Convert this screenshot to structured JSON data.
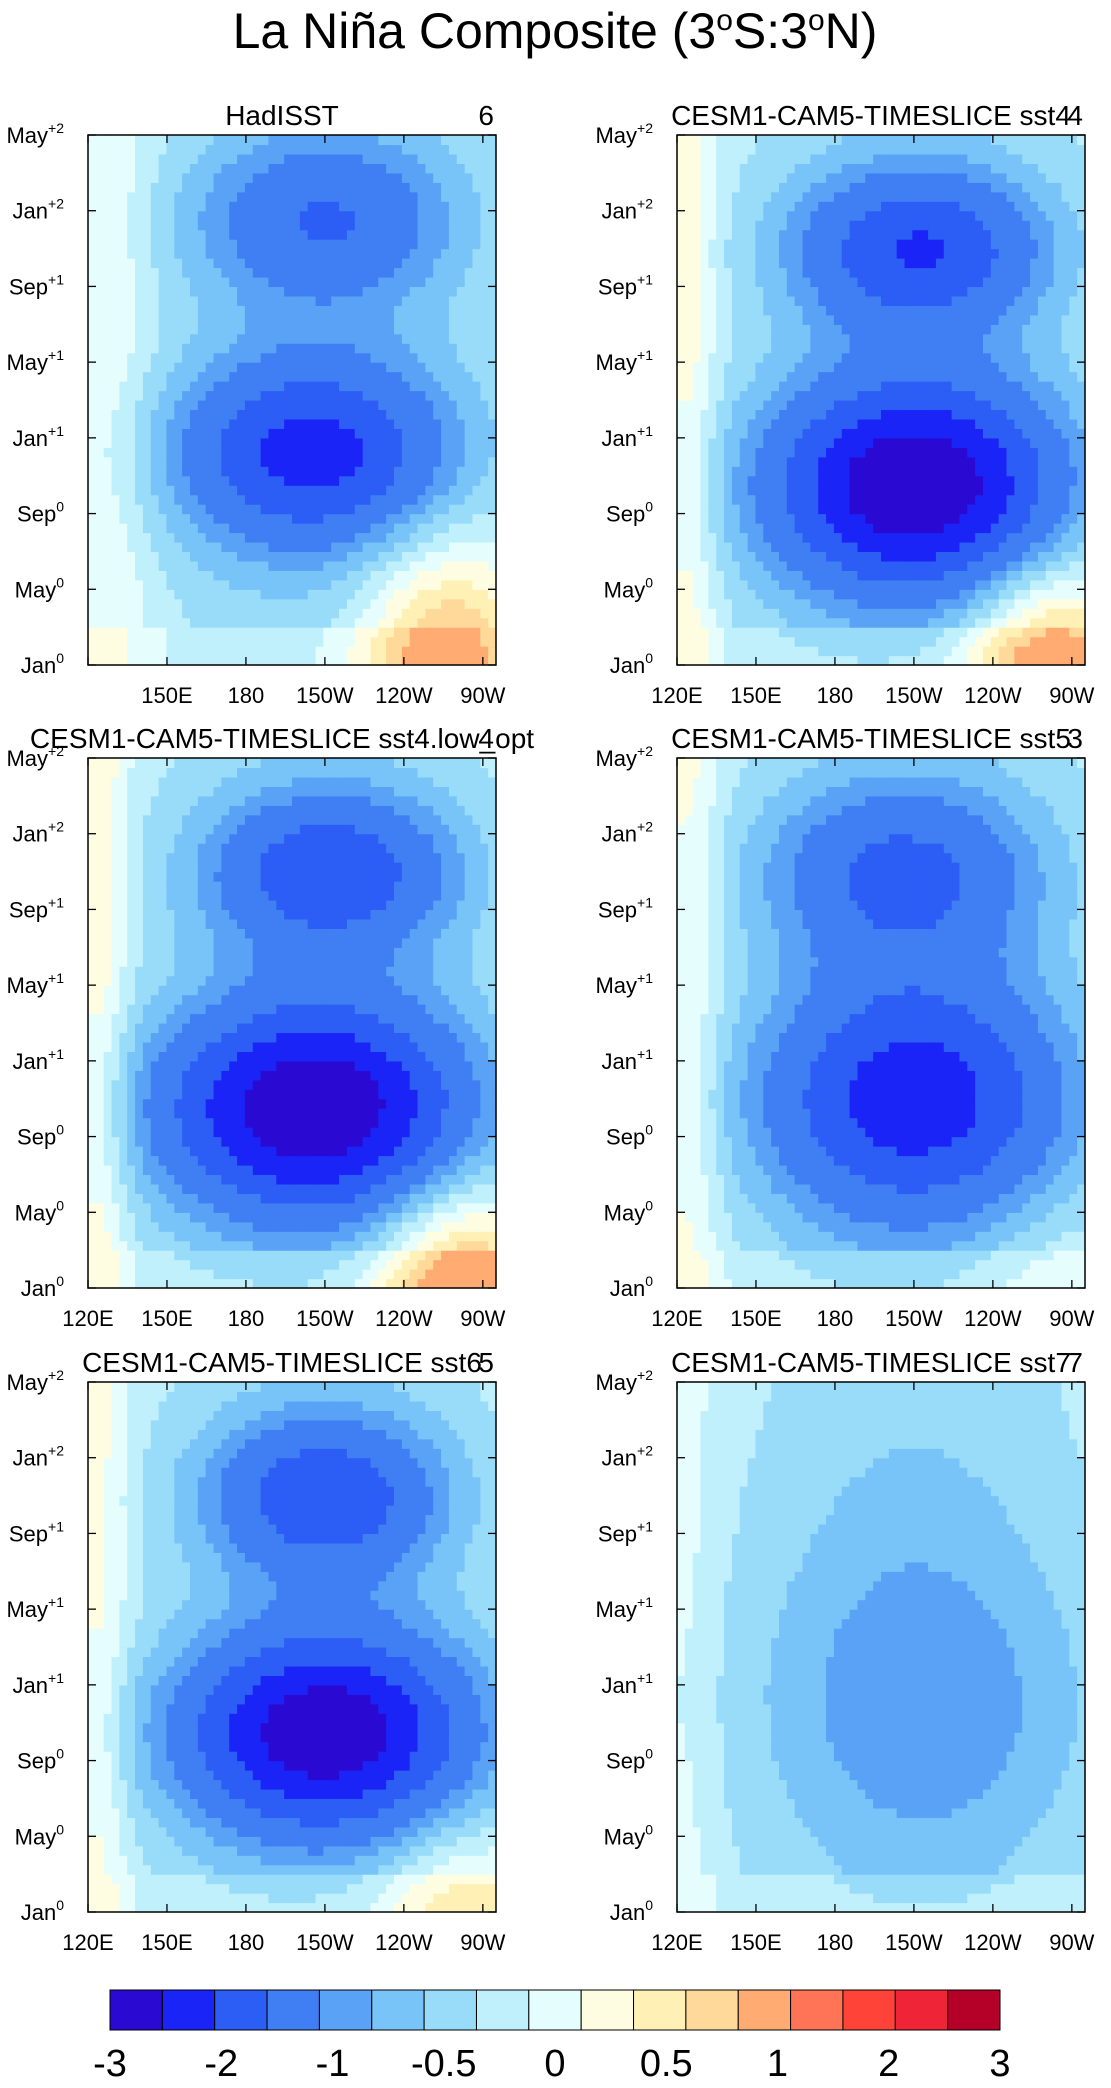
{
  "title": "La Niña Composite (3°S:3°N)",
  "title_parts": {
    "pre": "La Niña Composite (3",
    "deg1": "o",
    "mid": "S:3",
    "deg2": "o",
    "post": "N)"
  },
  "chart_data": {
    "type": "heatmap",
    "description_units": "SST anomaly",
    "x_ticks": [
      "120E",
      "150E",
      "180",
      "150W",
      "120W",
      "90W"
    ],
    "y_ticks": [
      {
        "base": "Jan",
        "sup": "0"
      },
      {
        "base": "May",
        "sup": "0"
      },
      {
        "base": "Sep",
        "sup": "0"
      },
      {
        "base": "Jan",
        "sup": "+1"
      },
      {
        "base": "May",
        "sup": "+1"
      },
      {
        "base": "Sep",
        "sup": "+1"
      },
      {
        "base": "Jan",
        "sup": "+2"
      },
      {
        "base": "May",
        "sup": "+2"
      }
    ],
    "colorbar": {
      "levels": [
        -3,
        -2.5,
        -2,
        -1.5,
        -1,
        -0.75,
        -0.5,
        -0.25,
        0,
        0.25,
        0.5,
        0.75,
        1,
        1.5,
        2,
        2.5,
        3
      ],
      "labels": [
        "-3",
        "-2",
        "-1",
        "-0.5",
        "0",
        "0.5",
        "1",
        "2",
        "3"
      ],
      "label_levels": [
        -3,
        -2,
        -1,
        -0.5,
        0,
        0.5,
        1,
        2,
        3
      ],
      "colors": [
        "#2a0ad2",
        "#1b24f7",
        "#2c5df5",
        "#3f7ef3",
        "#5aa2f6",
        "#78c3f8",
        "#98dcf9",
        "#bff0fc",
        "#e6fdfe",
        "#fffde1",
        "#fff0b6",
        "#ffd99a",
        "#ffab72",
        "#ff7356",
        "#ff4338",
        "#ef2437",
        "#b50027"
      ]
    },
    "panels": [
      {
        "title": "HadISST",
        "number": "6",
        "show_x_ticks": true,
        "first_x_tick": false,
        "field": {
          "A": 1.9,
          "center_lon": 205,
          "center_t": 11.2,
          "lon_w": 38,
          "t_w": 3.6,
          "B": 1.2,
          "center2_lon": 210,
          "center2_t": 23.5,
          "lon2_w": 36,
          "t2_w": 3.2,
          "warm_amp": 1.4,
          "warm_lon": 255,
          "warm_t": 0,
          "warm_lw": 22,
          "warm_tw": 4.5,
          "west_amp": 0.35,
          "west_lon": 128,
          "west_lw": 12
        }
      },
      {
        "title": "CESM1-CAM5-TIMESLICE sst4",
        "number": "4",
        "show_x_ticks": true,
        "first_x_tick": true,
        "field": {
          "A": 2.7,
          "center_lon": 210,
          "center_t": 9.5,
          "lon_w": 40,
          "t_w": 4.0,
          "B": 1.7,
          "center2_lon": 212,
          "center2_t": 22.0,
          "lon2_w": 34,
          "t2_w": 3.0,
          "warm_amp": 1.6,
          "warm_lon": 262,
          "warm_t": -1,
          "warm_lw": 22,
          "warm_tw": 4.0,
          "west_amp": 0.5,
          "west_lon": 124,
          "west_lw": 8
        }
      },
      {
        "title": "CESM1-CAM5-TIMESLICE sst4.low_opt",
        "number": "4",
        "show_x_ticks": true,
        "first_x_tick": true,
        "field": {
          "A": 2.7,
          "center_lon": 205,
          "center_t": 9.5,
          "lon_w": 42,
          "t_w": 4.0,
          "B": 1.6,
          "center2_lon": 212,
          "center2_t": 22.0,
          "lon2_w": 34,
          "t2_w": 3.0,
          "warm_amp": 1.7,
          "warm_lon": 262,
          "warm_t": -1,
          "warm_lw": 22,
          "warm_tw": 4.0,
          "west_amp": 0.55,
          "west_lon": 124,
          "west_lw": 8
        }
      },
      {
        "title": "CESM1-CAM5-TIMESLICE sst5",
        "number": "3",
        "show_x_ticks": true,
        "first_x_tick": true,
        "field": {
          "A": 2.0,
          "center_lon": 210,
          "center_t": 10.0,
          "lon_w": 42,
          "t_w": 4.6,
          "B": 1.3,
          "center2_lon": 205,
          "center2_t": 22.0,
          "lon2_w": 38,
          "t2_w": 3.4,
          "warm_amp": 0.3,
          "warm_lon": 262,
          "warm_t": 0,
          "warm_lw": 22,
          "warm_tw": 3.0,
          "west_amp": 0.45,
          "west_lon": 124,
          "west_lw": 9
        }
      },
      {
        "title": "CESM1-CAM5-TIMESLICE sst6",
        "number": "5",
        "show_x_ticks": true,
        "first_x_tick": true,
        "field": {
          "A": 2.6,
          "center_lon": 210,
          "center_t": 9.5,
          "lon_w": 40,
          "t_w": 3.8,
          "B": 1.6,
          "center2_lon": 210,
          "center2_t": 22.0,
          "lon2_w": 32,
          "t2_w": 3.0,
          "warm_amp": 0.9,
          "warm_lon": 262,
          "warm_t": -1,
          "warm_lw": 22,
          "warm_tw": 3.5,
          "west_amp": 0.45,
          "west_lon": 124,
          "west_lw": 8
        }
      },
      {
        "title": "CESM1-CAM5-TIMESLICE sst7",
        "number": "7",
        "show_x_ticks": true,
        "first_x_tick": true,
        "field": {
          "A": 0.6,
          "center_lon": 215,
          "center_t": 10.5,
          "lon_w": 48,
          "t_w": 6.0,
          "B": 0.15,
          "center2_lon": 210,
          "center2_t": 20.0,
          "lon2_w": 45,
          "t2_w": 6.0,
          "warm_amp": 0.0,
          "warm_lon": 262,
          "warm_t": 0,
          "warm_lw": 22,
          "warm_tw": 3.0,
          "west_amp": 0.2,
          "west_lon": 124,
          "west_lw": 8
        }
      }
    ]
  }
}
